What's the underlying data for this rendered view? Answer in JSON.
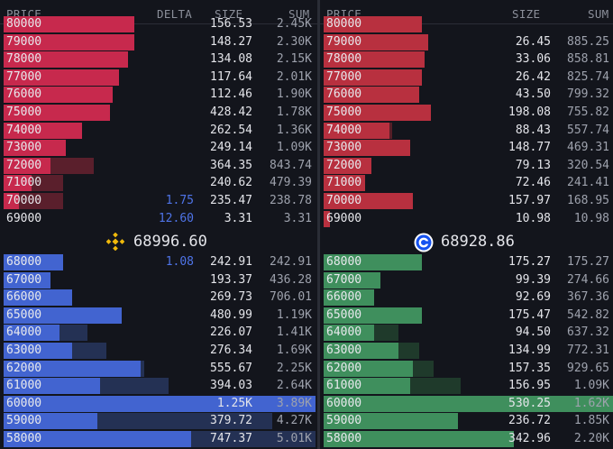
{
  "left": {
    "headers": {
      "price": "PRICE",
      "delta": "DELTA",
      "size": "SIZE",
      "sum": "SUM"
    },
    "mid_price": "68996.60",
    "exchange_icon": "binance-icon",
    "asks": [
      {
        "price": "80000",
        "delta": "",
        "size": "156.53",
        "sum": "2.45K",
        "fill": 0.42
      },
      {
        "price": "79000",
        "delta": "",
        "size": "148.27",
        "sum": "2.30K",
        "fill": 0.42
      },
      {
        "price": "78000",
        "delta": "",
        "size": "134.08",
        "sum": "2.15K",
        "fill": 0.4
      },
      {
        "price": "77000",
        "delta": "",
        "size": "117.64",
        "sum": "2.01K",
        "fill": 0.37
      },
      {
        "price": "76000",
        "delta": "",
        "size": "112.46",
        "sum": "1.90K",
        "fill": 0.35
      },
      {
        "price": "75000",
        "delta": "",
        "size": "428.42",
        "sum": "1.78K",
        "fill": 0.34
      },
      {
        "price": "74000",
        "delta": "",
        "size": "262.54",
        "sum": "1.36K",
        "fill": 0.25
      },
      {
        "price": "73000",
        "delta": "",
        "size": "249.14",
        "sum": "1.09K",
        "fill": 0.2
      },
      {
        "price": "72000",
        "delta": "",
        "size": "364.35",
        "sum": "843.74",
        "fill": 0.15
      },
      {
        "price": "71000",
        "delta": "",
        "size": "240.62",
        "sum": "479.39",
        "fill": 0.09
      },
      {
        "price": "70000",
        "delta": "1.75",
        "size": "235.47",
        "sum": "238.78",
        "fill": 0.05
      },
      {
        "price": "69000",
        "delta": "12.60",
        "size": "3.31",
        "sum": "3.31",
        "fill": 0.0
      }
    ],
    "ask_size_fill": [
      0.0,
      0.0,
      0.0,
      0.0,
      0.0,
      0.34,
      0.25,
      0.19,
      0.29,
      0.19,
      0.19,
      0.0
    ],
    "bids": [
      {
        "price": "68000",
        "delta": "1.08",
        "size": "242.91",
        "sum": "242.91",
        "fill": 0.19
      },
      {
        "price": "67000",
        "delta": "",
        "size": "193.37",
        "sum": "436.28",
        "fill": 0.15
      },
      {
        "price": "66000",
        "delta": "",
        "size": "269.73",
        "sum": "706.01",
        "fill": 0.22
      },
      {
        "price": "65000",
        "delta": "",
        "size": "480.99",
        "sum": "1.19K",
        "fill": 0.38
      },
      {
        "price": "64000",
        "delta": "",
        "size": "226.07",
        "sum": "1.41K",
        "fill": 0.18
      },
      {
        "price": "63000",
        "delta": "",
        "size": "276.34",
        "sum": "1.69K",
        "fill": 0.22
      },
      {
        "price": "62000",
        "delta": "",
        "size": "555.67",
        "sum": "2.25K",
        "fill": 0.44
      },
      {
        "price": "61000",
        "delta": "",
        "size": "394.03",
        "sum": "2.64K",
        "fill": 0.31
      },
      {
        "price": "60000",
        "delta": "",
        "size": "1.25K",
        "sum": "3.89K",
        "fill": 1.0
      },
      {
        "price": "59000",
        "delta": "",
        "size": "379.72",
        "sum": "4.27K",
        "fill": 0.3
      },
      {
        "price": "58000",
        "delta": "",
        "size": "747.37",
        "sum": "5.01K",
        "fill": 0.6
      }
    ],
    "bid_cum_fill": [
      0.0,
      0.0,
      0.0,
      0.0,
      0.27,
      0.33,
      0.45,
      0.53,
      0.78,
      0.86,
      1.0
    ]
  },
  "right": {
    "headers": {
      "price": "PRICE",
      "size": "SIZE",
      "sum": "SUM"
    },
    "mid_price": "68928.86",
    "exchange_icon": "coinbase-icon",
    "asks": [
      {
        "price": "80000",
        "size": "",
        "sum": "",
        "fill": 0.33
      },
      {
        "price": "79000",
        "size": "26.45",
        "sum": "885.25",
        "fill": 0.35
      },
      {
        "price": "78000",
        "size": "33.06",
        "sum": "858.81",
        "fill": 0.34
      },
      {
        "price": "77000",
        "size": "26.42",
        "sum": "825.74",
        "fill": 0.33
      },
      {
        "price": "76000",
        "size": "43.50",
        "sum": "799.32",
        "fill": 0.32
      },
      {
        "price": "75000",
        "size": "198.08",
        "sum": "755.82",
        "fill": 0.36
      },
      {
        "price": "74000",
        "size": "88.43",
        "sum": "557.74",
        "fill": 0.22
      },
      {
        "price": "73000",
        "size": "148.77",
        "sum": "469.31",
        "fill": 0.29
      },
      {
        "price": "72000",
        "size": "79.13",
        "sum": "320.54",
        "fill": 0.16
      },
      {
        "price": "71000",
        "size": "72.46",
        "sum": "241.41",
        "fill": 0.14
      },
      {
        "price": "70000",
        "size": "157.97",
        "sum": "168.95",
        "fill": 0.3
      },
      {
        "price": "69000",
        "size": "10.98",
        "sum": "10.98",
        "fill": 0.02
      }
    ],
    "ask_cum_fill": [
      0.0,
      0.0,
      0.0,
      0.0,
      0.0,
      0.0,
      0.23,
      0.0,
      0.0,
      0.0,
      0.0,
      0.0
    ],
    "bids": [
      {
        "price": "68000",
        "size": "175.27",
        "sum": "175.27",
        "fill": 0.33
      },
      {
        "price": "67000",
        "size": "99.39",
        "sum": "274.66",
        "fill": 0.19
      },
      {
        "price": "66000",
        "size": "92.69",
        "sum": "367.36",
        "fill": 0.17
      },
      {
        "price": "65000",
        "size": "175.47",
        "sum": "542.82",
        "fill": 0.33
      },
      {
        "price": "64000",
        "size": "94.50",
        "sum": "637.32",
        "fill": 0.17
      },
      {
        "price": "63000",
        "size": "134.99",
        "sum": "772.31",
        "fill": 0.25
      },
      {
        "price": "62000",
        "size": "157.35",
        "sum": "929.65",
        "fill": 0.3
      },
      {
        "price": "61000",
        "size": "156.95",
        "sum": "1.09K",
        "fill": 0.29
      },
      {
        "price": "60000",
        "size": "530.25",
        "sum": "1.62K",
        "fill": 1.0
      },
      {
        "price": "59000",
        "size": "236.72",
        "sum": "1.85K",
        "fill": 0.45
      },
      {
        "price": "58000",
        "size": "342.96",
        "sum": "2.20K",
        "fill": 0.64
      }
    ],
    "bid_cum_fill": [
      0.0,
      0.0,
      0.0,
      0.0,
      0.25,
      0.32,
      0.37,
      0.46,
      0.0,
      0.0,
      0.0
    ]
  },
  "colors": {
    "ask": "#c7294d",
    "ask_dim": "#5a1f2c",
    "ask_right": "#b8303f",
    "ask_right_dim": "#561e27",
    "bid": "#4264d0",
    "bid_dim": "#243154",
    "bid_right": "#3f8f5d",
    "bid_right_dim": "#1f3a2b",
    "background": "#13151c"
  }
}
